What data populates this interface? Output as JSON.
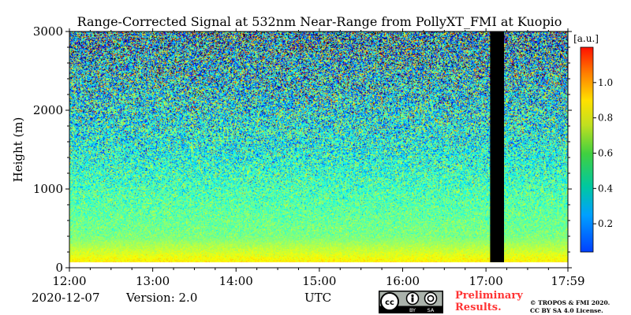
{
  "chart_data": {
    "type": "heatmap",
    "title": "Range-Corrected Signal at 532nm Near-Range from PollyXT_FMI at Kuopio",
    "ylabel": "Height (m)",
    "xlabel": "UTC",
    "x_ticks": [
      "12:00",
      "13:00",
      "14:00",
      "15:00",
      "16:00",
      "17:00",
      "17:59"
    ],
    "x_range": [
      "12:00",
      "17:59"
    ],
    "y_ticks": [
      0,
      1000,
      2000,
      3000
    ],
    "ylim": [
      0,
      3000
    ],
    "colorbar": {
      "unit": "[a.u.]",
      "ticks": [
        0.2,
        0.4,
        0.6,
        0.8,
        1.0
      ],
      "range": [
        0.04,
        1.2
      ],
      "colormap": "jet"
    },
    "no_data_interval": [
      "17:03",
      "17:13"
    ],
    "profile_description": {
      "near_surface_band_top_m": 380,
      "lowest_data_height_m": 70,
      "signal_near_surface": 0.78,
      "signal_at_300m": 0.62,
      "signal_at_1500m": 0.5,
      "signal_at_3000m": 0.45,
      "noise_increase_with_height": true
    }
  },
  "footer": {
    "date": "2020-12-07",
    "version": "Version: 2.0",
    "preliminary": "Preliminary\nResults.",
    "copyright": "© TROPOS & FMI 2020.",
    "license": "CC BY SA 4.0 License."
  },
  "license_badge": {
    "by": "BY",
    "sa": "SA",
    "cc": "cc"
  }
}
